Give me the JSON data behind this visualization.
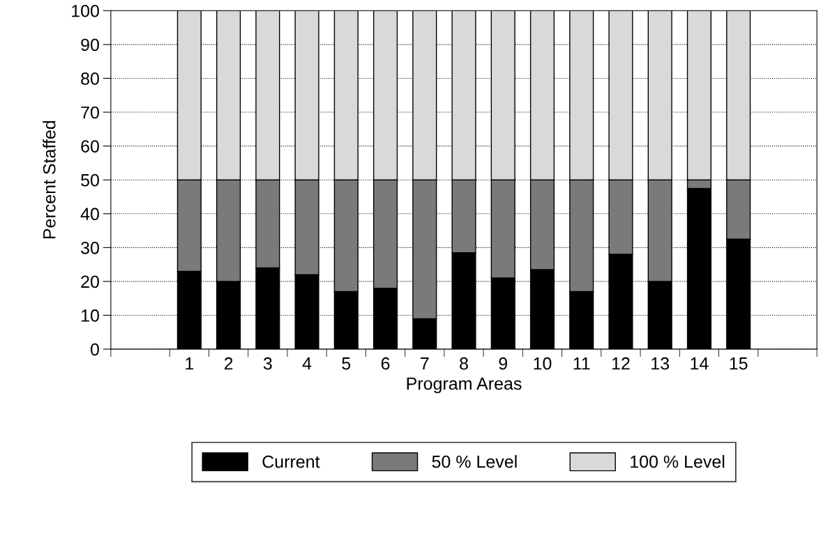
{
  "chart_data": {
    "type": "bar",
    "stacked": true,
    "xlabel": "Program Areas",
    "ylabel": "Percent Staffed",
    "categories": [
      "1",
      "2",
      "3",
      "4",
      "5",
      "6",
      "7",
      "8",
      "9",
      "10",
      "11",
      "12",
      "13",
      "14",
      "15"
    ],
    "series": [
      {
        "name": "Current",
        "color": "#000000",
        "values": [
          23,
          20,
          24,
          22,
          17,
          18,
          9,
          28.5,
          21,
          23.5,
          17,
          28,
          20,
          47.5,
          32.5
        ]
      },
      {
        "name": "50 % Level",
        "color": "#7a7a7a",
        "values": [
          27,
          30,
          26,
          28,
          33,
          32,
          41,
          21.5,
          29,
          26.5,
          33,
          22,
          30,
          2.5,
          17.5
        ]
      },
      {
        "name": "100 % Level",
        "color": "#d9d9d9",
        "values": [
          50,
          50,
          50,
          50,
          50,
          50,
          50,
          50,
          50,
          50,
          50,
          50,
          50,
          50,
          50
        ]
      }
    ],
    "ylim": [
      0,
      100
    ],
    "yticks": [
      0,
      10,
      20,
      30,
      40,
      50,
      60,
      70,
      80,
      90,
      100
    ],
    "grid": "y",
    "legend": "bottom"
  }
}
